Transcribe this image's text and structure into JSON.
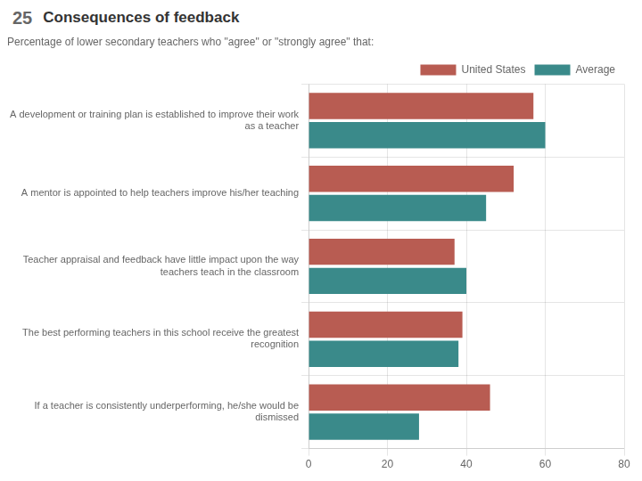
{
  "chart_data": {
    "type": "bar",
    "orientation": "horizontal",
    "title": "Consequences of feedback",
    "annotations": [
      "25"
    ],
    "subtitle": "Percentage of lower secondary teachers who \"agree\" or \"strongly agree\" that:",
    "categories": [
      "A development or training plan is established to improve their work\nas a teacher",
      "A mentor is appointed to help teachers improve his/her teaching",
      "Teacher appraisal and feedback have little impact upon the way\nteachers teach in the classroom",
      "The best performing teachers in this school receive the greatest\nrecognition",
      "If a teacher is consistently underperforming, he/she would be\ndismissed"
    ],
    "series": [
      {
        "name": "United States",
        "color": "#b85c52",
        "values": [
          57,
          52,
          37,
          39,
          46
        ]
      },
      {
        "name": "Average",
        "color": "#3a8a8a",
        "values": [
          60,
          45,
          40,
          38,
          28
        ]
      }
    ],
    "xlim": [
      0,
      80
    ],
    "xticks": [
      0,
      20,
      40,
      60,
      80
    ],
    "grid": true,
    "legend": "top"
  }
}
